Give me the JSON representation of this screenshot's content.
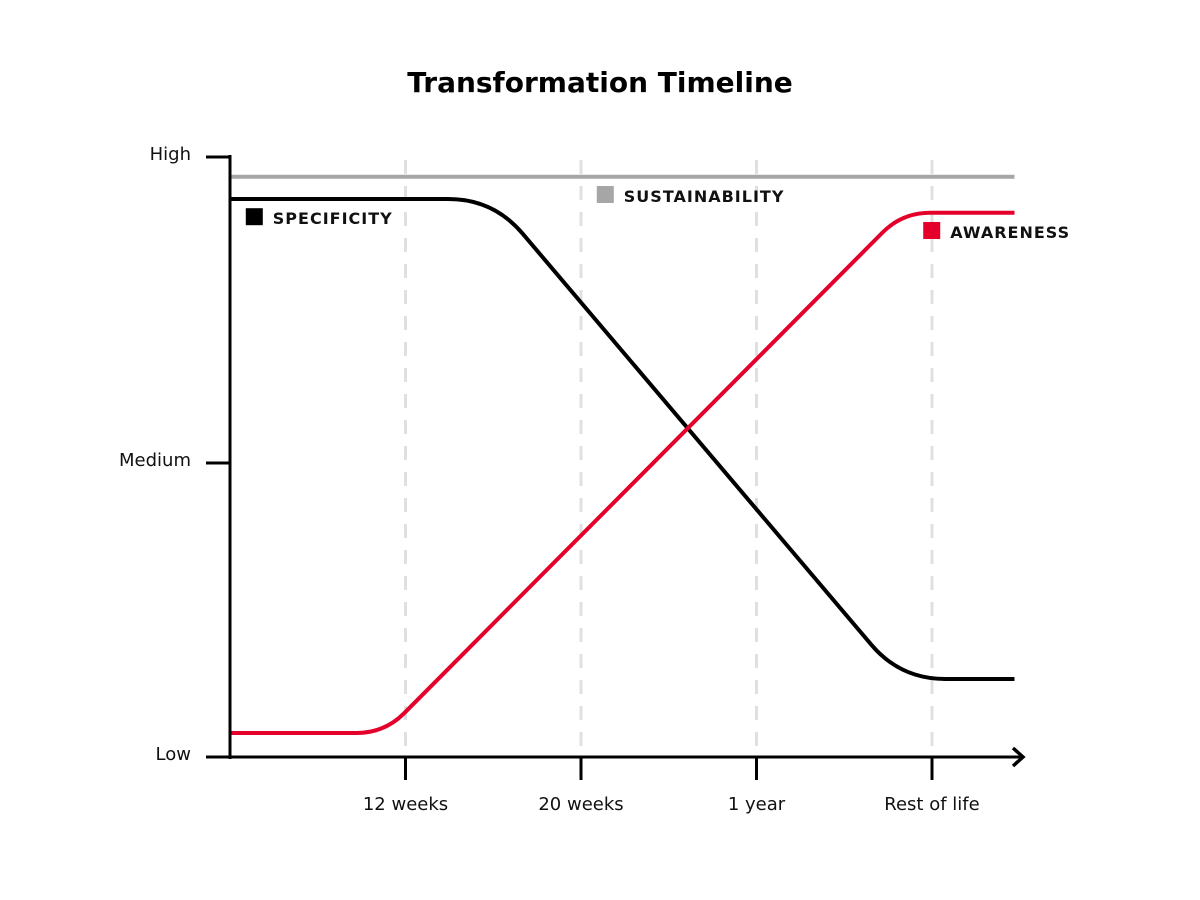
{
  "chart_data": {
    "type": "line",
    "title": "Transformation Timeline",
    "xlabel": "",
    "ylabel": "",
    "x_ticks": [
      {
        "value": 1,
        "label": "12 weeks"
      },
      {
        "value": 2,
        "label": "20 weeks"
      },
      {
        "value": 3,
        "label": "1 year"
      },
      {
        "value": 4,
        "label": "Rest of life"
      }
    ],
    "y_ticks": [
      {
        "value": 0,
        "label": "Low"
      },
      {
        "value": 0.49,
        "label": "Medium"
      },
      {
        "value": 1,
        "label": "High"
      }
    ],
    "xlim": [
      0,
      4.47
    ],
    "ylim": [
      0,
      1
    ],
    "grid": "vertical dashed at x ticks",
    "series": [
      {
        "name": "SUSTAINABILITY",
        "color": "#a6a6a6",
        "points": [
          [
            0,
            0.967
          ],
          [
            4.47,
            0.967
          ]
        ],
        "legend_at": [
          2.09,
          0.925
        ]
      },
      {
        "name": "SPECIFICITY",
        "color": "#000000",
        "points": [
          [
            0,
            0.93
          ],
          [
            1.5,
            0.93
          ],
          [
            3.82,
            0.13
          ],
          [
            4.47,
            0.13
          ]
        ],
        "legend_at": [
          0.09,
          0.888
        ]
      },
      {
        "name": "AWARENESS",
        "color": "#e4002b",
        "points": [
          [
            0,
            0.04
          ],
          [
            0.88,
            0.04
          ],
          [
            3.83,
            0.907
          ],
          [
            4.47,
            0.907
          ]
        ],
        "legend_at": [
          3.95,
          0.865
        ]
      }
    ]
  }
}
